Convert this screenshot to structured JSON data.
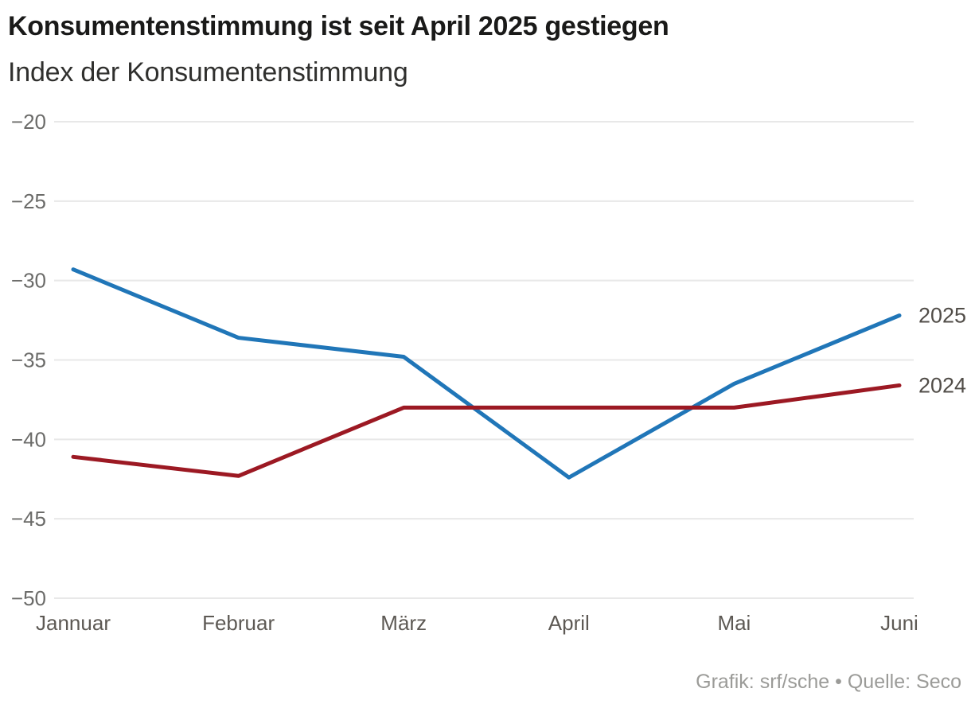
{
  "header": {
    "title": "Konsumentenstimmung ist seit April 2025 gestiegen",
    "subtitle": "Index der Konsumentenstimmung"
  },
  "footer": {
    "credit": "Grafik: srf/sche • Quelle: Seco"
  },
  "chart_data": {
    "type": "line",
    "title": "Konsumentenstimmung ist seit April 2025 gestiegen",
    "xlabel": "",
    "ylabel": "Index der Konsumentenstimmung",
    "categories": [
      "Jannuar",
      "Februar",
      "März",
      "April",
      "Mai",
      "Juni"
    ],
    "series": [
      {
        "name": "2025",
        "color": "#2076b8",
        "values": [
          -29.3,
          -33.6,
          -34.8,
          -42.4,
          -36.5,
          -32.2
        ]
      },
      {
        "name": "2024",
        "color": "#9c1923",
        "values": [
          -41.1,
          -42.3,
          -38.0,
          -38.0,
          -38.0,
          -36.6
        ]
      }
    ],
    "ylim": [
      -50,
      -20
    ],
    "yticks": [
      {
        "value": -20,
        "label": "−20"
      },
      {
        "value": -25,
        "label": "−25"
      },
      {
        "value": -30,
        "label": "−30"
      },
      {
        "value": -35,
        "label": "−35"
      },
      {
        "value": -40,
        "label": "−40"
      },
      {
        "value": -45,
        "label": "−45"
      },
      {
        "value": -50,
        "label": "−50"
      }
    ],
    "grid": "horizontal",
    "gridline_color": "#e8e8e8",
    "legend_position": "line-end-labels-right"
  }
}
